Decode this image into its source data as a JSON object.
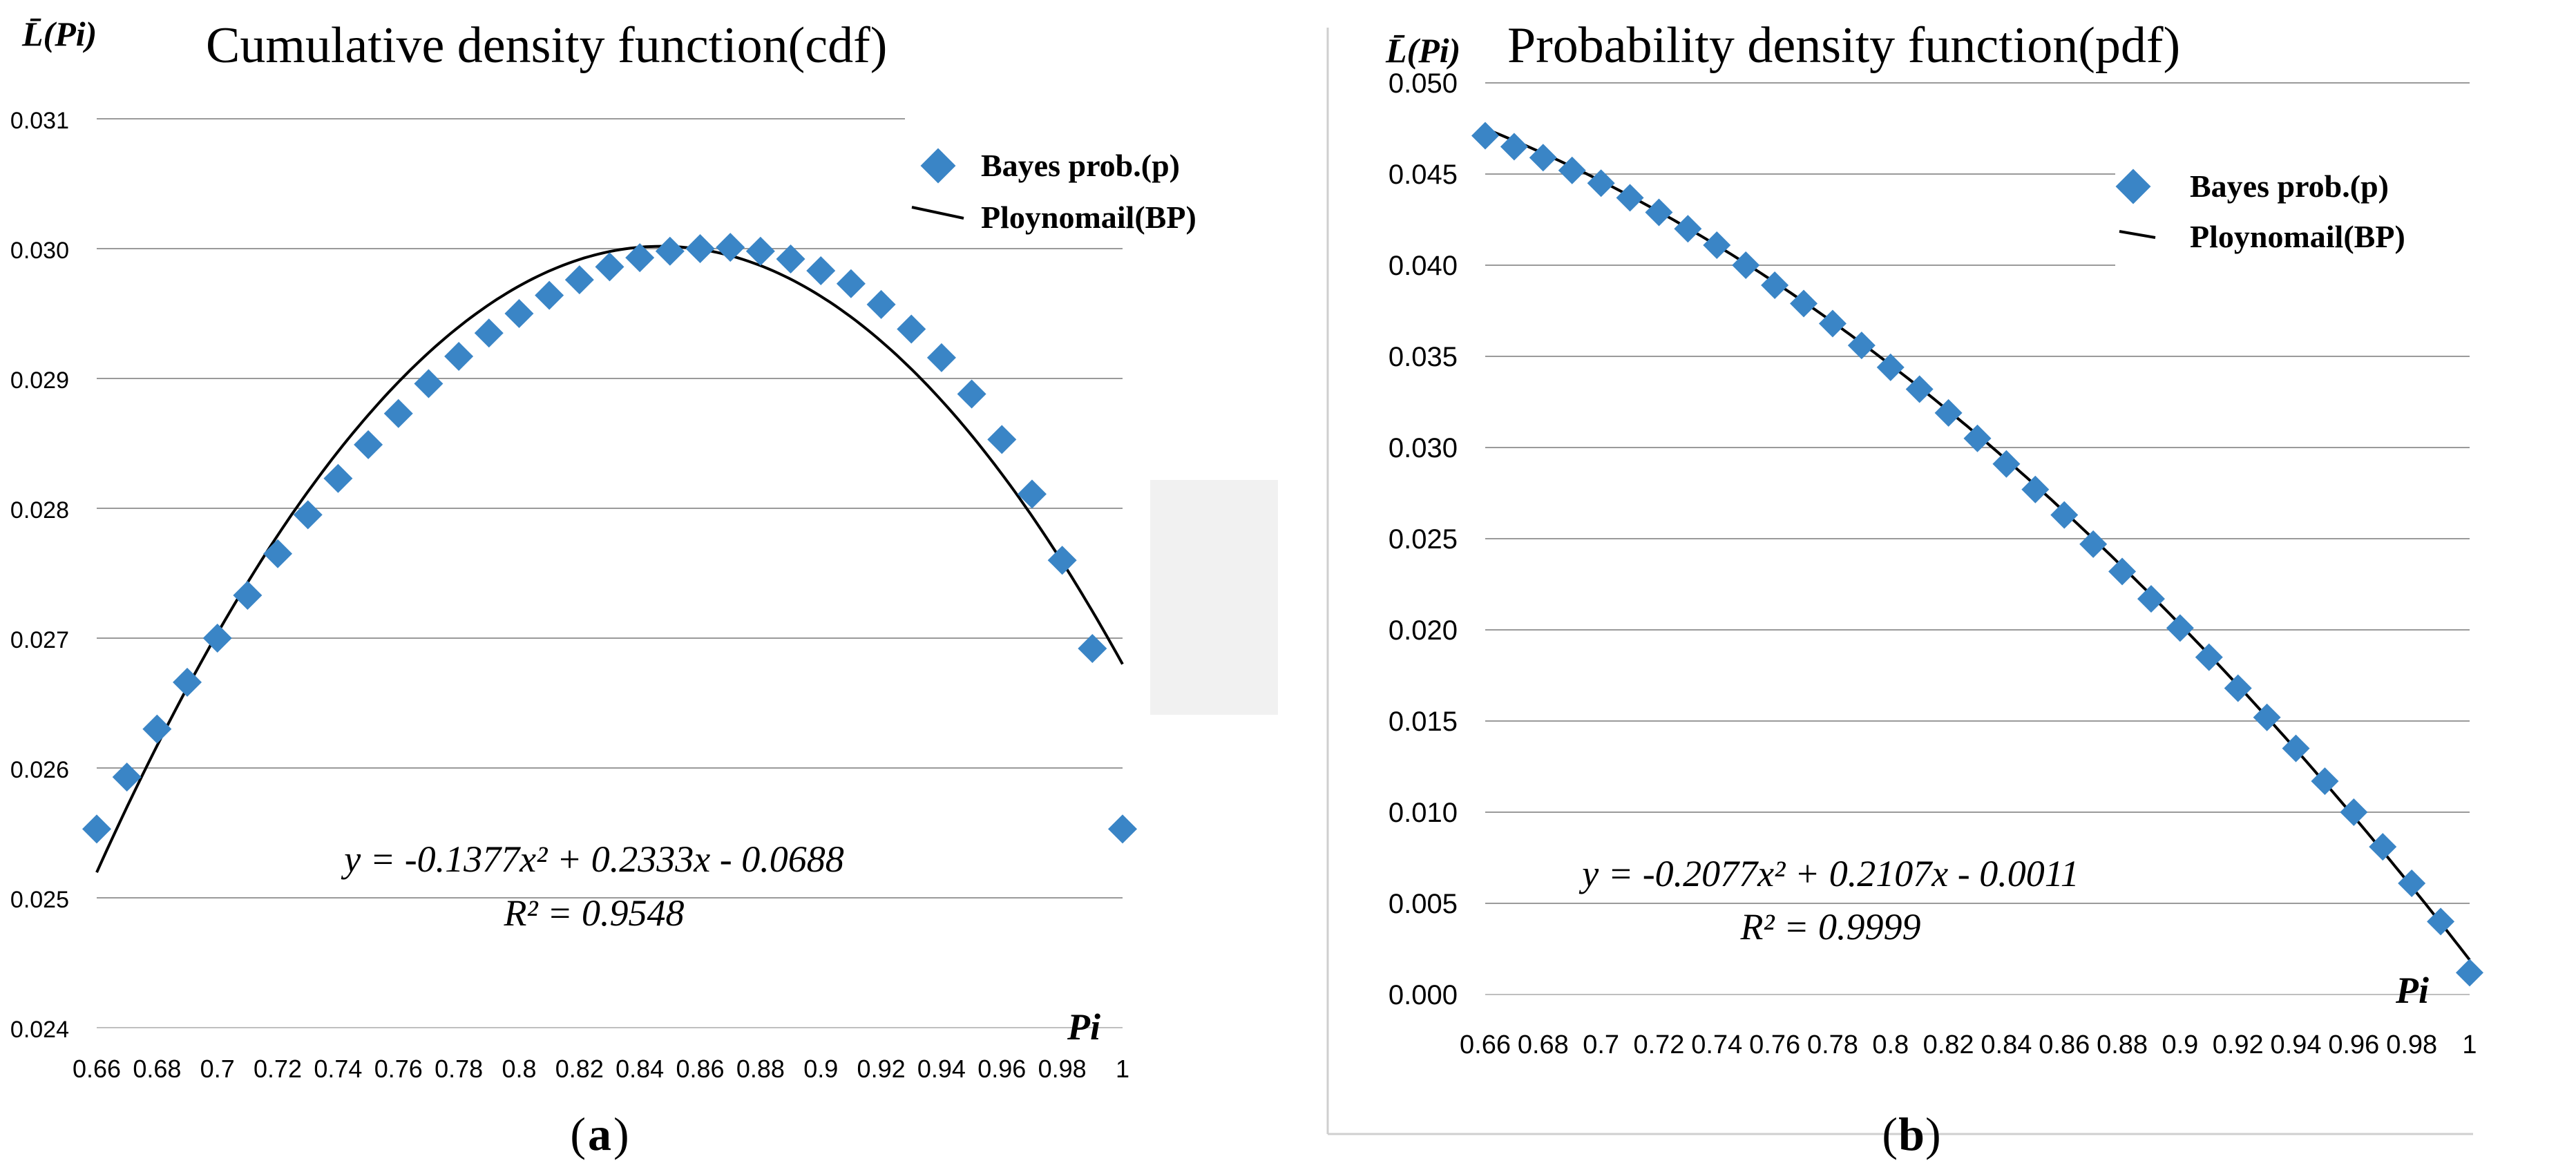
{
  "colors": {
    "marker": "#3A85C6",
    "grid": "#9a9a9a",
    "fit_line": "#000000",
    "text": "#000000",
    "shade": "#f1f1f1"
  },
  "chart_data": [
    {
      "panel_label": "(a)",
      "panel_letter": "a",
      "type": "scatter",
      "title": "Cumulative density function(cdf)",
      "ylabel": "L̄(Pi)",
      "xlabel": "Pi",
      "xlim": [
        0.66,
        1.0
      ],
      "ylim": [
        0.024,
        0.031
      ],
      "x_ticks": [
        "0.66",
        "0.68",
        "0.7",
        "0.72",
        "0.74",
        "0.76",
        "0.78",
        "0.8",
        "0.82",
        "0.84",
        "0.86",
        "0.88",
        "0.9",
        "0.92",
        "0.94",
        "0.96",
        "0.98",
        "1"
      ],
      "y_ticks": [
        "0.024",
        "0.025",
        "0.026",
        "0.027",
        "0.028",
        "0.029",
        "0.030",
        "0.031"
      ],
      "legend": {
        "position": "top-right",
        "entries": [
          "Bayes prob.(p)",
          "Ploynomail(BP)"
        ]
      },
      "series": [
        {
          "name": "Bayes prob.(p)",
          "kind": "markers",
          "x": [
            0.66,
            0.67,
            0.68,
            0.69,
            0.7,
            0.71,
            0.72,
            0.73,
            0.74,
            0.75,
            0.76,
            0.77,
            0.78,
            0.79,
            0.8,
            0.81,
            0.82,
            0.83,
            0.84,
            0.85,
            0.86,
            0.87,
            0.88,
            0.89,
            0.9,
            0.91,
            0.92,
            0.93,
            0.94,
            0.95,
            0.96,
            0.97,
            0.98,
            0.99,
            1.0
          ],
          "y": [
            0.02553,
            0.02593,
            0.0263,
            0.02666,
            0.027,
            0.02733,
            0.02765,
            0.02795,
            0.02823,
            0.02849,
            0.02873,
            0.02896,
            0.02917,
            0.02935,
            0.0295,
            0.02964,
            0.02976,
            0.02986,
            0.02993,
            0.02998,
            0.03,
            0.03001,
            0.02998,
            0.02992,
            0.02983,
            0.02973,
            0.02957,
            0.02938,
            0.02916,
            0.02888,
            0.02853,
            0.02811,
            0.0276,
            0.02692,
            0.02553
          ]
        },
        {
          "name": "Ploynomail(BP)",
          "kind": "polynomial",
          "coefficients": [
            -0.1377,
            0.2333,
            -0.0688
          ]
        }
      ],
      "equation": "y = -0.1377x² + 0.2333x - 0.0688",
      "r_squared": "R² = 0.9548"
    },
    {
      "panel_label": "(b)",
      "panel_letter": "b",
      "type": "scatter",
      "title": "Probability density function(pdf)",
      "ylabel": "L̄(Pi)",
      "xlabel": "Pi",
      "xlim": [
        0.66,
        1.0
      ],
      "ylim": [
        0.0,
        0.05
      ],
      "x_ticks": [
        "0.66",
        "0.68",
        "0.7",
        "0.72",
        "0.74",
        "0.76",
        "0.78",
        "0.8",
        "0.82",
        "0.84",
        "0.86",
        "0.88",
        "0.9",
        "0.92",
        "0.94",
        "0.96",
        "0.98",
        "1"
      ],
      "y_ticks": [
        "0.000",
        "0.005",
        "0.010",
        "0.015",
        "0.020",
        "0.025",
        "0.030",
        "0.035",
        "0.040",
        "0.045",
        "0.050"
      ],
      "legend": {
        "position": "top-right",
        "entries": [
          "Bayes prob.(p)",
          "Ploynomail(BP)"
        ]
      },
      "series": [
        {
          "name": "Bayes prob.(p)",
          "kind": "markers",
          "x": [
            0.66,
            0.67,
            0.68,
            0.69,
            0.7,
            0.71,
            0.72,
            0.73,
            0.74,
            0.75,
            0.76,
            0.77,
            0.78,
            0.79,
            0.8,
            0.81,
            0.82,
            0.83,
            0.84,
            0.85,
            0.86,
            0.87,
            0.88,
            0.89,
            0.9,
            0.91,
            0.92,
            0.93,
            0.94,
            0.95,
            0.96,
            0.97,
            0.98,
            0.99,
            1.0
          ],
          "y": [
            0.0471,
            0.0465,
            0.0459,
            0.0452,
            0.0445,
            0.0437,
            0.0429,
            0.042,
            0.0411,
            0.04,
            0.0389,
            0.0379,
            0.0368,
            0.0356,
            0.0344,
            0.0332,
            0.0319,
            0.0305,
            0.0291,
            0.0277,
            0.0263,
            0.0247,
            0.0232,
            0.0217,
            0.0201,
            0.0185,
            0.0168,
            0.0152,
            0.0135,
            0.0117,
            0.01,
            0.0081,
            0.0061,
            0.004,
            0.0012
          ]
        },
        {
          "name": "Ploynomail(BP)",
          "kind": "polynomial",
          "coefficients": [
            -0.2077,
            0.2107,
            -0.0011
          ]
        }
      ],
      "equation": "y = -0.2077x² + 0.2107x - 0.0011",
      "r_squared": "R² = 0.9999"
    }
  ]
}
